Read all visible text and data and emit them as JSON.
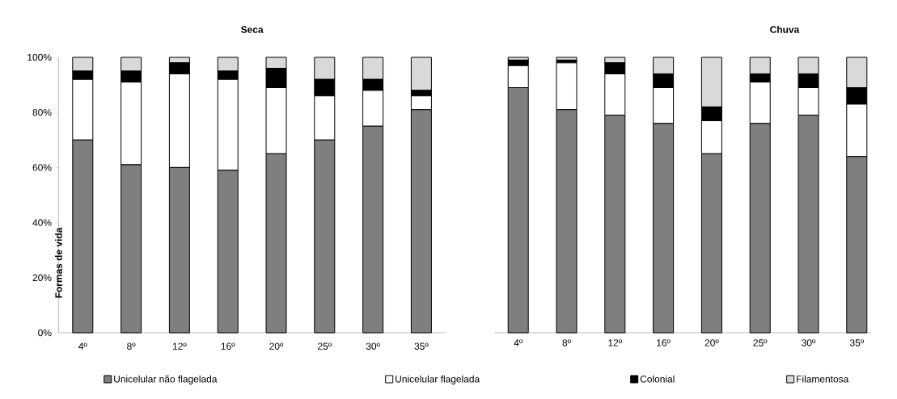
{
  "chart_data": [
    {
      "type": "bar",
      "stacked": true,
      "title": "Seca",
      "ylabel": "Formas de vida",
      "categories": [
        "4º",
        "8º",
        "12º",
        "16º",
        "20º",
        "25º",
        "30º",
        "35º"
      ],
      "series": [
        {
          "name": "Unicelular não flagelada",
          "color": "#7f7f7f",
          "values": [
            70,
            61,
            60,
            59,
            65,
            70,
            75,
            81
          ]
        },
        {
          "name": "Unicelular flagelada",
          "color": "#ffffff",
          "values": [
            22,
            30,
            34,
            33,
            24,
            16,
            13,
            5
          ]
        },
        {
          "name": "Colonial",
          "color": "#000000",
          "values": [
            3,
            4,
            4,
            3,
            7,
            6,
            4,
            2
          ]
        },
        {
          "name": "Filamentosa",
          "color": "#d9d9d9",
          "values": [
            5,
            5,
            2,
            5,
            4,
            8,
            8,
            12
          ]
        }
      ],
      "ylim": [
        0,
        100
      ],
      "yticks": [
        {
          "value": 0,
          "label": "0%"
        },
        {
          "value": 20,
          "label": "20%"
        },
        {
          "value": 40,
          "label": "40%"
        },
        {
          "value": 60,
          "label": "60%"
        },
        {
          "value": 80,
          "label": "80%"
        },
        {
          "value": 100,
          "label": "100%"
        }
      ],
      "legend": "bottom"
    },
    {
      "type": "bar",
      "stacked": true,
      "title": "Chuva",
      "categories": [
        "4º",
        "8º",
        "12º",
        "16º",
        "20º",
        "25º",
        "30º",
        "35º"
      ],
      "series": [
        {
          "color": "#7f7f7f",
          "values": [
            89,
            81,
            79,
            76,
            65,
            76,
            79,
            64
          ]
        },
        {
          "color": "#ffffff",
          "values": [
            8,
            17,
            15,
            13,
            12,
            15,
            10,
            19
          ]
        },
        {
          "color": "#000000",
          "values": [
            2,
            1,
            4,
            5,
            5,
            3,
            5,
            6
          ]
        },
        {
          "color": "#d9d9d9",
          "values": [
            1,
            1,
            2,
            6,
            18,
            6,
            6,
            11
          ]
        }
      ],
      "ylim": [
        0,
        100
      ],
      "tick_labels": "x"
    }
  ]
}
